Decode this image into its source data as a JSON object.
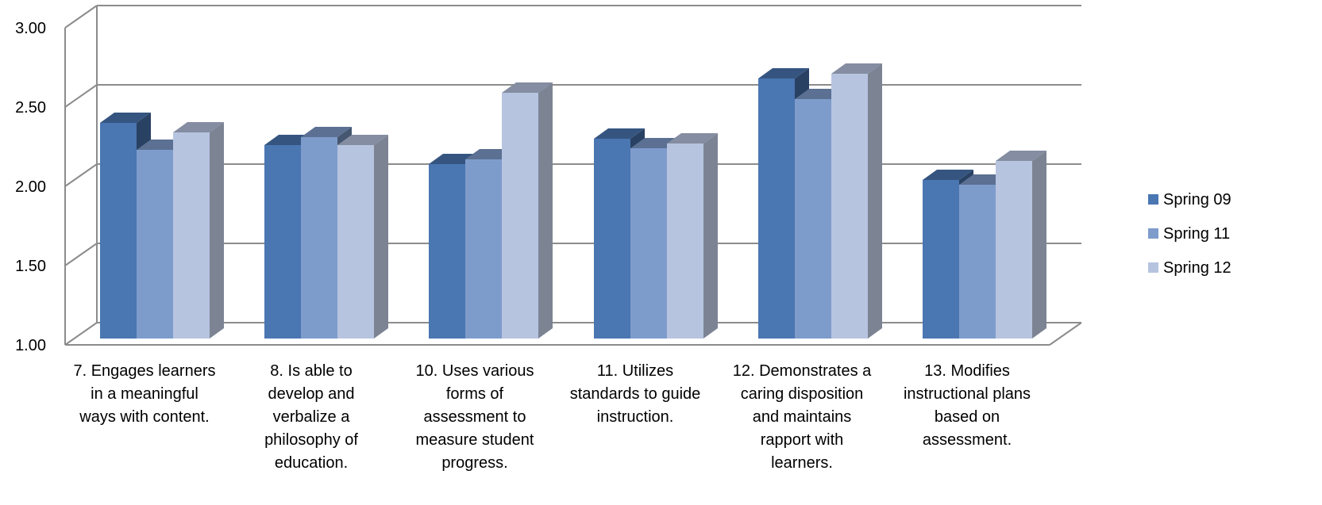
{
  "chart_data": {
    "type": "bar",
    "three_d": true,
    "title": "",
    "xlabel": "",
    "ylabel": "",
    "ylim": [
      1.0,
      3.0
    ],
    "y_ticks": [
      "1.00",
      "1.50",
      "2.00",
      "2.50",
      "3.00"
    ],
    "grid": true,
    "legend_position": "right",
    "categories": [
      [
        "7. Engages learners",
        "in a meaningful",
        "ways with content."
      ],
      [
        "8. Is able to",
        "develop and",
        "verbalize a",
        "philosophy of",
        "education."
      ],
      [
        "10. Uses various",
        "forms of",
        "assessment to",
        "measure student",
        "progress."
      ],
      [
        "11. Utilizes",
        "standards to guide",
        "instruction."
      ],
      [
        "12. Demonstrates a",
        "caring disposition",
        "and maintains",
        "rapport with",
        "learners."
      ],
      [
        "13. Modifies",
        "instructional plans",
        "based on",
        "assessment."
      ]
    ],
    "series": [
      {
        "name": "Spring 09",
        "color": "#4a76b2",
        "values": [
          2.46,
          2.32,
          2.2,
          2.36,
          2.74,
          2.1
        ]
      },
      {
        "name": "Spring 11",
        "color": "#7e9ccb",
        "values": [
          2.29,
          2.37,
          2.23,
          2.3,
          2.61,
          2.07
        ]
      },
      {
        "name": "Spring 12",
        "color": "#b7c4e0",
        "values": [
          2.4,
          2.32,
          2.65,
          2.33,
          2.77,
          2.22
        ]
      }
    ]
  }
}
